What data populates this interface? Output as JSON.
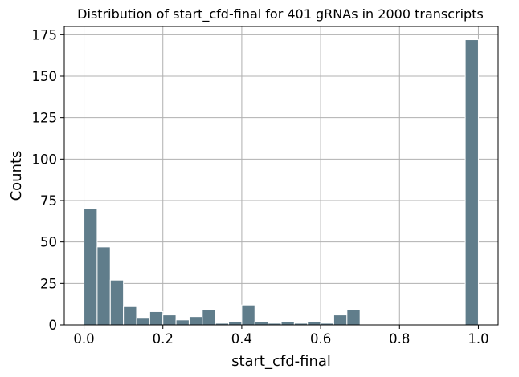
{
  "chart_data": {
    "type": "bar",
    "title": "Distribution of start_cfd-final for 401 gRNAs in 2000 transcripts",
    "xlabel": "start_cfd-final",
    "ylabel": "Counts",
    "xlim": [
      -0.05,
      1.05
    ],
    "ylim": [
      0,
      180
    ],
    "grid": true,
    "bar_color": "#607d8b",
    "bar_edge_color": "#ffffff",
    "bin_width": 0.0333,
    "x_ticks": [
      {
        "value": 0.0,
        "label": "0.0"
      },
      {
        "value": 0.2,
        "label": "0.2"
      },
      {
        "value": 0.4,
        "label": "0.4"
      },
      {
        "value": 0.6,
        "label": "0.6"
      },
      {
        "value": 0.8,
        "label": "0.8"
      },
      {
        "value": 1.0,
        "label": "1.0"
      }
    ],
    "y_ticks": [
      {
        "value": 0,
        "label": "0"
      },
      {
        "value": 25,
        "label": "25"
      },
      {
        "value": 50,
        "label": "50"
      },
      {
        "value": 75,
        "label": "75"
      },
      {
        "value": 100,
        "label": "100"
      },
      {
        "value": 125,
        "label": "125"
      },
      {
        "value": 150,
        "label": "150"
      },
      {
        "value": 175,
        "label": "175"
      }
    ],
    "bins": [
      {
        "start": 0.0,
        "count": 70
      },
      {
        "start": 0.0333,
        "count": 47
      },
      {
        "start": 0.0667,
        "count": 27
      },
      {
        "start": 0.1,
        "count": 11
      },
      {
        "start": 0.1333,
        "count": 4
      },
      {
        "start": 0.1667,
        "count": 8
      },
      {
        "start": 0.2,
        "count": 6
      },
      {
        "start": 0.2333,
        "count": 3
      },
      {
        "start": 0.2667,
        "count": 5
      },
      {
        "start": 0.3,
        "count": 9
      },
      {
        "start": 0.3333,
        "count": 1
      },
      {
        "start": 0.3667,
        "count": 2
      },
      {
        "start": 0.4,
        "count": 12
      },
      {
        "start": 0.4333,
        "count": 2
      },
      {
        "start": 0.4667,
        "count": 1
      },
      {
        "start": 0.5,
        "count": 2
      },
      {
        "start": 0.5333,
        "count": 1
      },
      {
        "start": 0.5667,
        "count": 2
      },
      {
        "start": 0.6,
        "count": 1
      },
      {
        "start": 0.6333,
        "count": 6
      },
      {
        "start": 0.6667,
        "count": 9
      },
      {
        "start": 0.7,
        "count": 0
      },
      {
        "start": 0.7333,
        "count": 0
      },
      {
        "start": 0.7667,
        "count": 0
      },
      {
        "start": 0.8,
        "count": 0
      },
      {
        "start": 0.8333,
        "count": 0
      },
      {
        "start": 0.8667,
        "count": 0
      },
      {
        "start": 0.9,
        "count": 0
      },
      {
        "start": 0.9333,
        "count": 0
      },
      {
        "start": 0.9667,
        "count": 172
      }
    ]
  }
}
